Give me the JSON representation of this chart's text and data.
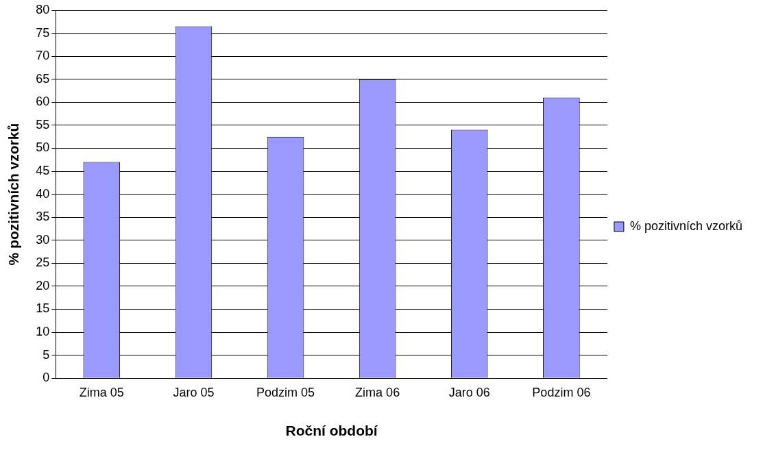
{
  "chart_data": {
    "type": "bar",
    "xlabel": "Roční období",
    "ylabel": "% pozitivních vzorků",
    "categories": [
      "Zima 05",
      "Jaro 05",
      "Podzim 05",
      "Zima 06",
      "Jaro 06",
      "Podzim 06"
    ],
    "series": [
      {
        "name": "% pozitivních vzorků",
        "color": "#9999ff",
        "values": [
          47,
          76.5,
          52.5,
          65,
          54,
          61
        ]
      }
    ],
    "ylim": [
      0,
      80
    ],
    "yticks": [
      0,
      5,
      10,
      15,
      20,
      25,
      30,
      35,
      40,
      45,
      50,
      55,
      60,
      65,
      70,
      75,
      80
    ],
    "grid": "y",
    "legend": "right"
  }
}
